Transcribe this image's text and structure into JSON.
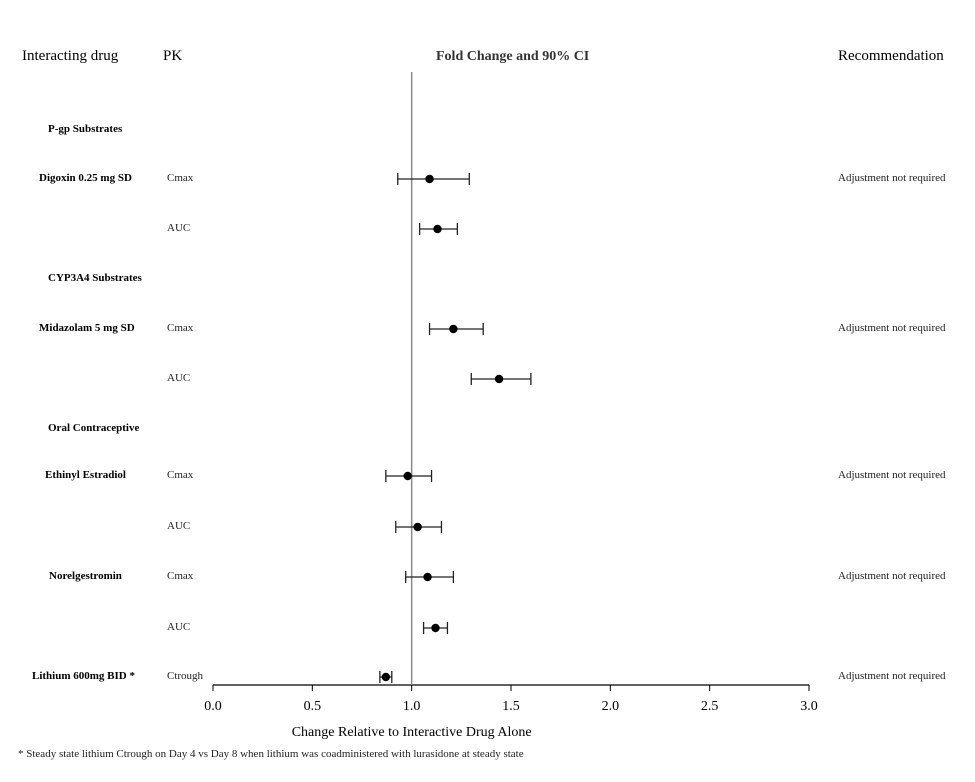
{
  "headers": {
    "drug": "Interacting drug",
    "pk": "PK",
    "center": "Fold Change and 90% CI",
    "recommendation": "Recommendation"
  },
  "footnote": "* Steady state lithium Ctrough on Day 4 vs Day 8 when lithium was coadministered with lurasidone at steady state",
  "chart_data": {
    "type": "forest",
    "xlabel": "Change Relative to Interactive Drug Alone",
    "xlim": [
      0.0,
      3.0
    ],
    "xticks": [
      "0.0",
      "0.5",
      "1.0",
      "1.5",
      "2.0",
      "2.5",
      "3.0"
    ],
    "reference_line": 1.0,
    "rows": [
      {
        "kind": "section",
        "label": "P-gp Substrates"
      },
      {
        "kind": "data",
        "drug": "Digoxin 0.25 mg SD",
        "pk": "Cmax",
        "value": 1.09,
        "ci": [
          0.93,
          1.29
        ],
        "recommendation": "Adjustment not required"
      },
      {
        "kind": "data",
        "drug": "",
        "pk": "AUC",
        "value": 1.13,
        "ci": [
          1.04,
          1.23
        ],
        "recommendation": ""
      },
      {
        "kind": "section",
        "label": "CYP3A4 Substrates"
      },
      {
        "kind": "data",
        "drug": "Midazolam 5 mg SD",
        "pk": "Cmax",
        "value": 1.21,
        "ci": [
          1.09,
          1.36
        ],
        "recommendation": "Adjustment not required"
      },
      {
        "kind": "data",
        "drug": "",
        "pk": "AUC",
        "value": 1.44,
        "ci": [
          1.3,
          1.6
        ],
        "recommendation": ""
      },
      {
        "kind": "section",
        "label": "Oral Contraceptive"
      },
      {
        "kind": "data",
        "drug": "Ethinyl Estradiol",
        "pk": "Cmax",
        "value": 0.98,
        "ci": [
          0.87,
          1.1
        ],
        "recommendation": "Adjustment not required"
      },
      {
        "kind": "data",
        "drug": "",
        "pk": "AUC",
        "value": 1.03,
        "ci": [
          0.92,
          1.15
        ],
        "recommendation": ""
      },
      {
        "kind": "data",
        "drug": "Norelgestromin",
        "pk": "Cmax",
        "value": 1.08,
        "ci": [
          0.97,
          1.21
        ],
        "recommendation": "Adjustment not required"
      },
      {
        "kind": "data",
        "drug": "",
        "pk": "AUC",
        "value": 1.12,
        "ci": [
          1.06,
          1.18
        ],
        "recommendation": ""
      },
      {
        "kind": "data",
        "drug": "Lithium 600mg BID *",
        "pk": "Ctrough",
        "value": 0.87,
        "ci": [
          0.84,
          0.9
        ],
        "recommendation": "Adjustment not required"
      }
    ]
  }
}
